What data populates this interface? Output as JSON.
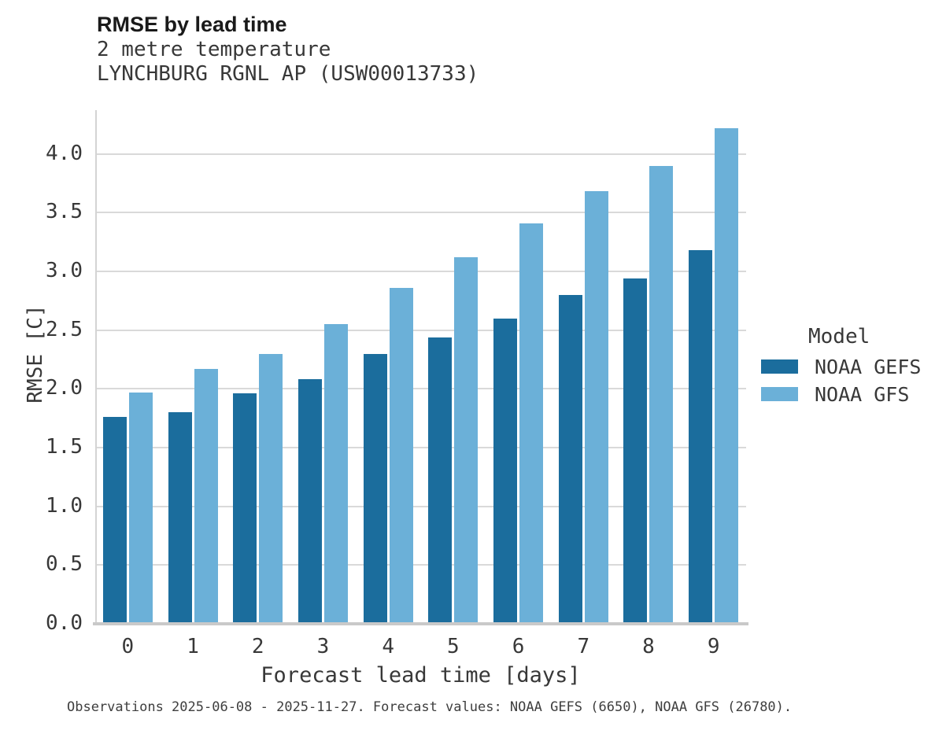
{
  "header": {
    "title": "RMSE by lead time",
    "subtitle_variable": "2 metre temperature",
    "subtitle_station": "LYNCHBURG RGNL AP (USW00013733)"
  },
  "legend": {
    "title": "Model",
    "entries": [
      {
        "label": "NOAA GEFS",
        "color": "#1b6d9d"
      },
      {
        "label": "NOAA GFS",
        "color": "#6bb0d8"
      }
    ]
  },
  "footer": {
    "note": "Observations 2025-06-08 - 2025-11-27. Forecast values: NOAA GEFS (6650), NOAA GFS (26780)."
  },
  "chart_data": {
    "type": "bar",
    "title": "RMSE by lead time",
    "subtitle": [
      "2 metre temperature",
      "LYNCHBURG RGNL AP (USW00013733)"
    ],
    "xlabel": "Forecast lead time [days]",
    "ylabel": "RMSE [C]",
    "categories": [
      0,
      1,
      2,
      3,
      4,
      5,
      6,
      7,
      8,
      9
    ],
    "xtick_labels": [
      "0",
      "1",
      "2",
      "3",
      "4",
      "5",
      "6",
      "7",
      "8",
      "9"
    ],
    "series": [
      {
        "name": "NOAA GEFS",
        "color": "#1b6d9d",
        "values": [
          1.76,
          1.8,
          1.96,
          2.08,
          2.3,
          2.44,
          2.6,
          2.8,
          2.94,
          3.18
        ]
      },
      {
        "name": "NOAA GFS",
        "color": "#6bb0d8",
        "values": [
          1.97,
          2.17,
          2.3,
          2.55,
          2.86,
          3.12,
          3.41,
          3.68,
          3.9,
          4.22
        ]
      }
    ],
    "ylim": [
      0,
      4.37
    ],
    "yticks": [
      0.0,
      0.5,
      1.0,
      1.5,
      2.0,
      2.5,
      3.0,
      3.5,
      4.0
    ],
    "ytick_labels": [
      "0.0",
      "0.5",
      "1.0",
      "1.5",
      "2.0",
      "2.5",
      "3.0",
      "3.5",
      "4.0"
    ],
    "grid": true,
    "legend_title": "Model",
    "legend_position": "right",
    "colors": {
      "gridline": "#d9d9d9",
      "axis": "#c9c9c9",
      "text": "#383838"
    }
  }
}
